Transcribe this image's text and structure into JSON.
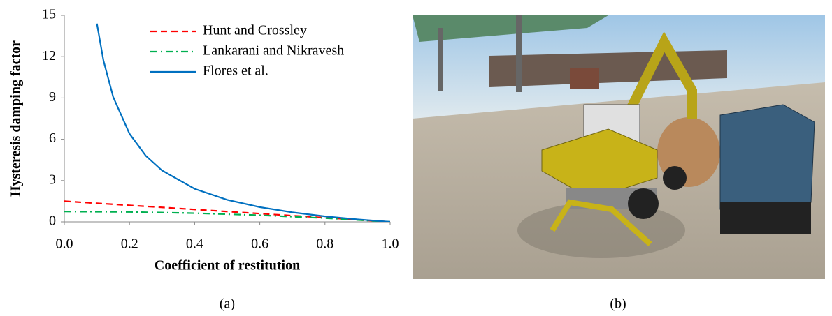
{
  "chart_data": {
    "type": "line",
    "xlabel": "Coefficient of restitution",
    "ylabel": "Hysteresis damping factor",
    "xlim": [
      0,
      1
    ],
    "ylim": [
      0,
      15
    ],
    "xticks": [
      {
        "value": 0,
        "label": "0.0"
      },
      {
        "value": 0.2,
        "label": "0.2"
      },
      {
        "value": 0.4,
        "label": "0.4"
      },
      {
        "value": 0.6,
        "label": "0.6"
      },
      {
        "value": 0.8,
        "label": "0.8"
      },
      {
        "value": 1,
        "label": "1.0"
      }
    ],
    "yticks": [
      0,
      3,
      6,
      9,
      12,
      15
    ],
    "grid": false,
    "legend": "top-right",
    "series": [
      {
        "name": "Hunt and Crossley",
        "color": "#ff0000",
        "dash": "dashed",
        "x": [
          0,
          0.2,
          0.4,
          0.6,
          0.8,
          1
        ],
        "values": [
          1.5,
          1.2,
          0.9,
          0.6,
          0.3,
          0
        ]
      },
      {
        "name": "Lankarani and Nikravesh",
        "color": "#00b050",
        "dash": "dashdot",
        "x": [
          0,
          0.2,
          0.4,
          0.6,
          0.8,
          1
        ],
        "values": [
          0.75,
          0.72,
          0.63,
          0.48,
          0.27,
          0
        ]
      },
      {
        "name": "Flores et al.",
        "color": "#0070c0",
        "dash": "solid",
        "x": [
          0.1,
          0.12,
          0.15,
          0.2,
          0.25,
          0.3,
          0.4,
          0.5,
          0.6,
          0.7,
          0.8,
          0.9,
          1
        ],
        "values": [
          14.4,
          11.73,
          9.07,
          6.4,
          4.8,
          3.73,
          2.4,
          1.6,
          1.07,
          0.69,
          0.4,
          0.18,
          0
        ]
      }
    ]
  },
  "captions": [
    "(a)",
    "(b)"
  ]
}
